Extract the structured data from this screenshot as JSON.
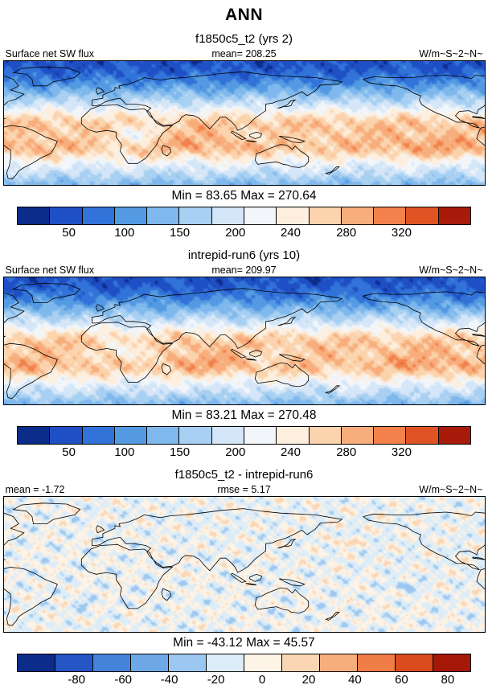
{
  "title": "ANN",
  "panels": [
    {
      "subtitle": "f1850c5_t2 (yrs 2)",
      "left_label": "Surface net SW flux",
      "center_label": "mean= 208.25",
      "units": "W/m~S~2~N~",
      "minmax": "Min =  83.65 Max = 270.64",
      "ticks": [
        "50",
        "100",
        "150",
        "200",
        "240",
        "280",
        "320"
      ],
      "colors": [
        "#0c2c8a",
        "#1f4fc4",
        "#3173d8",
        "#549ae2",
        "#7fb8ec",
        "#a8d0f2",
        "#d4e6f8",
        "#f2f6fb",
        "#fdeedd",
        "#fbd3ad",
        "#f8ae7c",
        "#f2814b",
        "#e05424",
        "#a81a0a"
      ]
    },
    {
      "subtitle": "intrepid-run6 (yrs 10)",
      "left_label": "Surface net SW flux",
      "center_label": "mean= 209.97",
      "units": "W/m~S~2~N~",
      "minmax": "Min =  83.21 Max = 270.48",
      "ticks": [
        "50",
        "100",
        "150",
        "200",
        "240",
        "280",
        "320"
      ],
      "colors": [
        "#0c2c8a",
        "#1f4fc4",
        "#3173d8",
        "#549ae2",
        "#7fb8ec",
        "#a8d0f2",
        "#d4e6f8",
        "#f2f6fb",
        "#fdeedd",
        "#fbd3ad",
        "#f8ae7c",
        "#f2814b",
        "#e05424",
        "#a81a0a"
      ]
    },
    {
      "subtitle": "f1850c5_t2 - intrepid-run6",
      "left_label": "mean =  -1.72",
      "center_label": "rmse =  5.17",
      "units": "W/m~S~2~N~",
      "minmax": "Min = -43.12 Max =  45.57",
      "ticks": [
        "-80",
        "-60",
        "-40",
        "-20",
        "0",
        "20",
        "40",
        "60",
        "80"
      ],
      "colors": [
        "#0c2c8a",
        "#2456c6",
        "#4583d8",
        "#6fa8e6",
        "#9cc7f0",
        "#dcedf9",
        "#fdf3e6",
        "#fbd6b4",
        "#f8ad7c",
        "#f07c46",
        "#da4c1e",
        "#a51808"
      ]
    }
  ],
  "chart_data": [
    {
      "type": "heatmap",
      "title": "f1850c5_t2 (yrs 2)",
      "variable": "Surface net SW flux",
      "units": "W/m~S~2~N~",
      "projection": "global latitude-longitude map",
      "season": "ANN",
      "mean": 208.25,
      "min": 83.65,
      "max": 270.64,
      "colorbar_ticks": [
        50,
        100,
        150,
        200,
        240,
        280,
        320
      ],
      "colorbar_colors": [
        "#0c2c8a",
        "#1f4fc4",
        "#3173d8",
        "#549ae2",
        "#7fb8ec",
        "#a8d0f2",
        "#d4e6f8",
        "#f2f6fb",
        "#fdeedd",
        "#fbd3ad",
        "#f8ae7c",
        "#f2814b",
        "#e05424",
        "#a81a0a"
      ]
    },
    {
      "type": "heatmap",
      "title": "intrepid-run6 (yrs 10)",
      "variable": "Surface net SW flux",
      "units": "W/m~S~2~N~",
      "projection": "global latitude-longitude map",
      "season": "ANN",
      "mean": 209.97,
      "min": 83.21,
      "max": 270.48,
      "colorbar_ticks": [
        50,
        100,
        150,
        200,
        240,
        280,
        320
      ],
      "colorbar_colors": [
        "#0c2c8a",
        "#1f4fc4",
        "#3173d8",
        "#549ae2",
        "#7fb8ec",
        "#a8d0f2",
        "#d4e6f8",
        "#f2f6fb",
        "#fdeedd",
        "#fbd3ad",
        "#f8ae7c",
        "#f2814b",
        "#e05424",
        "#a81a0a"
      ]
    },
    {
      "type": "heatmap",
      "title": "f1850c5_t2 - intrepid-run6",
      "variable": "Surface net SW flux difference",
      "units": "W/m~S~2~N~",
      "projection": "global latitude-longitude map",
      "season": "ANN",
      "mean": -1.72,
      "rmse": 5.17,
      "min": -43.12,
      "max": 45.57,
      "colorbar_ticks": [
        -80,
        -60,
        -40,
        -20,
        0,
        20,
        40,
        60,
        80
      ],
      "colorbar_colors": [
        "#0c2c8a",
        "#2456c6",
        "#4583d8",
        "#6fa8e6",
        "#9cc7f0",
        "#dcedf9",
        "#fdf3e6",
        "#fbd6b4",
        "#f8ad7c",
        "#f07c46",
        "#da4c1e",
        "#a51808"
      ]
    }
  ]
}
